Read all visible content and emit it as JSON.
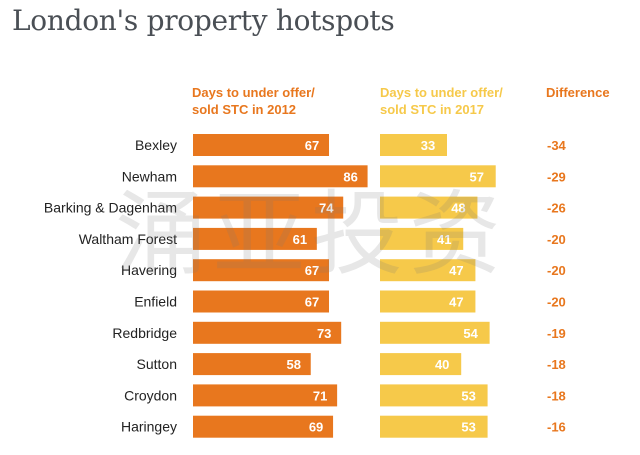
{
  "title": "London's property hotspots",
  "watermark_text": "涌亚投资",
  "colors": {
    "bar2012": "#e8771e",
    "bar2017": "#f6c94a",
    "diff": "#e8771e",
    "label": "#222222"
  },
  "chart_data": {
    "type": "bar",
    "orientation": "horizontal",
    "title": "London's property hotspots",
    "columns": [
      "Days to under offer/\nsold STC in 2012",
      "Days to under offer/\nsold STC in 2017",
      "Difference"
    ],
    "categories": [
      "Bexley",
      "Newham",
      "Barking & Dagenham",
      "Waltham Forest",
      "Havering",
      "Enfield",
      "Redbridge",
      "Sutton",
      "Croydon",
      "Haringey"
    ],
    "series": [
      {
        "values": [
          67,
          86,
          74,
          61,
          67,
          67,
          73,
          58,
          71,
          69
        ]
      },
      {
        "values": [
          33,
          57,
          48,
          41,
          47,
          47,
          54,
          40,
          53,
          53
        ]
      }
    ],
    "difference": [
      "-34",
      "-29",
      "-26",
      "-20",
      "-20",
      "-20",
      "-19",
      "-18",
      "-18",
      "-16"
    ],
    "grid": false
  }
}
